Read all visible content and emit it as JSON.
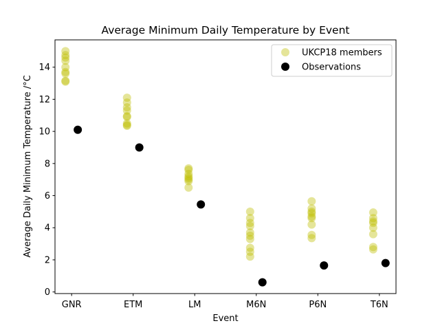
{
  "chart_data": {
    "type": "scatter",
    "title": "Average Minimum Daily Temperature by Event",
    "xlabel": "Event",
    "ylabel": "Average Daily Minimum Temperature /°C",
    "categories": [
      "GNR",
      "ETM",
      "LM",
      "M6N",
      "P6N",
      "T6N"
    ],
    "ylim": [
      -0.1,
      15.7
    ],
    "yticks": [
      0,
      2,
      4,
      6,
      8,
      10,
      12,
      14
    ],
    "grid": false,
    "legend_position": "top-right",
    "series": [
      {
        "name": "UKCP18 members",
        "color": "#bfbf00",
        "opacity": 0.4,
        "values": [
          [
            15.0,
            14.75,
            14.6,
            14.4,
            14.0,
            13.7,
            13.6,
            13.15,
            13.1
          ],
          [
            12.1,
            11.8,
            11.5,
            11.3,
            10.95,
            10.9,
            10.5,
            10.4,
            10.35
          ],
          [
            7.7,
            7.6,
            7.35,
            7.2,
            7.1,
            7.0,
            6.9,
            6.5
          ],
          [
            5.0,
            4.6,
            4.3,
            4.1,
            3.7,
            3.5,
            3.3,
            2.75,
            2.5,
            2.2
          ],
          [
            5.65,
            5.2,
            5.0,
            4.9,
            4.7,
            4.6,
            4.2,
            3.55,
            3.35
          ],
          [
            4.95,
            4.6,
            4.4,
            4.3,
            4.0,
            3.6,
            2.8,
            2.65
          ]
        ]
      },
      {
        "name": "Observations",
        "color": "#000000",
        "opacity": 1.0,
        "values": [
          10.1,
          9.0,
          5.45,
          0.6,
          1.65,
          1.8
        ]
      }
    ]
  }
}
